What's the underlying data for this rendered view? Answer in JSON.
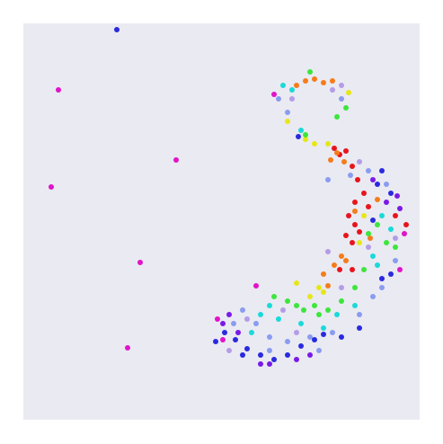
{
  "chart_data": {
    "type": "scatter",
    "xlim": [
      26,
      467
    ],
    "ylim": [
      467,
      26
    ],
    "grid": false,
    "marker_radius": 3,
    "series": [
      {
        "color": "#e8141c",
        "x": [
          372,
          378,
          385,
          392,
          398,
          405,
          395,
          388,
          395,
          385,
          392,
          400,
          410,
          378,
          392,
          452,
          440
        ],
        "y": [
          165,
          172,
          168,
          185,
          200,
          215,
          225,
          240,
          250,
          262,
          270,
          258,
          230,
          300,
          300,
          250,
          240
        ]
      },
      {
        "color": "#f57c1a",
        "x": [
          340,
          350,
          360,
          370,
          330,
          375,
          368,
          383,
          380,
          372,
          385,
          360,
          395,
          412,
          365,
          420
        ],
        "y": [
          90,
          88,
          92,
          90,
          95,
          170,
          178,
          180,
          285,
          295,
          290,
          305,
          235,
          265,
          318,
          222
        ]
      },
      {
        "color": "#e6e61a",
        "x": [
          350,
          365,
          340,
          320,
          355,
          360,
          345,
          330,
          405,
          388,
          400
        ],
        "y": [
          160,
          160,
          155,
          135,
          320,
          325,
          330,
          315,
          240,
          103,
          270
        ]
      },
      {
        "color": "#3ce63c",
        "x": [
          345,
          385,
          375,
          340,
          330,
          320,
          305,
          350,
          365,
          355,
          405,
          395,
          380,
          410,
          430,
          440,
          420,
          338
        ],
        "y": [
          80,
          120,
          130,
          150,
          340,
          335,
          330,
          340,
          345,
          350,
          300,
          320,
          335,
          260,
          270,
          275,
          250,
          345
        ]
      },
      {
        "color": "#1ad9d9",
        "x": [
          315,
          325,
          335,
          300,
          290,
          310,
          335,
          375,
          360,
          425,
          435,
          415,
          280,
          420,
          395
        ],
        "y": [
          95,
          100,
          145,
          340,
          350,
          355,
          360,
          350,
          365,
          240,
          255,
          285,
          370,
          295,
          340
        ]
      },
      {
        "color": "#8a9cf0",
        "x": [
          310,
          320,
          380,
          390,
          410,
          430,
          270,
          260,
          285,
          300,
          320,
          345,
          370,
          400,
          415,
          425,
          440,
          365,
          355,
          300
        ],
        "y": [
          110,
          125,
          110,
          195,
          190,
          205,
          345,
          360,
          360,
          375,
          380,
          375,
          370,
          350,
          330,
          320,
          290,
          200,
          390,
          390
        ]
      },
      {
        "color": "#2a2ae0",
        "x": [
          332,
          425,
          420,
          435,
          415,
          250,
          262,
          275,
          290,
          305,
          320,
          335,
          350,
          360,
          380,
          425,
          435,
          400,
          270,
          240,
          130
        ],
        "y": [
          152,
          190,
          205,
          215,
          245,
          370,
          378,
          388,
          395,
          400,
          395,
          385,
          378,
          372,
          375,
          310,
          305,
          365,
          395,
          380,
          33
        ]
      },
      {
        "color": "#7a1ae6",
        "x": [
          430,
          442,
          445,
          255,
          248,
          265,
          290,
          330,
          345,
          415,
          300
        ],
        "y": [
          225,
          218,
          232,
          350,
          360,
          370,
          405,
          400,
          395,
          200,
          405
        ]
      },
      {
        "color": "#e014c8",
        "x": [
          65,
          196,
          57,
          156,
          142,
          242,
          450,
          285,
          445,
          248,
          305
        ],
        "y": [
          100,
          178,
          208,
          292,
          387,
          355,
          260,
          318,
          300,
          378,
          105
        ]
      },
      {
        "color": "#b49ce6",
        "x": [
          325,
          370,
          380,
          400,
          410,
          380,
          330,
          275,
          255,
          315,
          440,
          365
        ],
        "y": [
          110,
          100,
          95,
          180,
          275,
          320,
          370,
          355,
          390,
          345,
          265,
          280
        ]
      }
    ]
  }
}
